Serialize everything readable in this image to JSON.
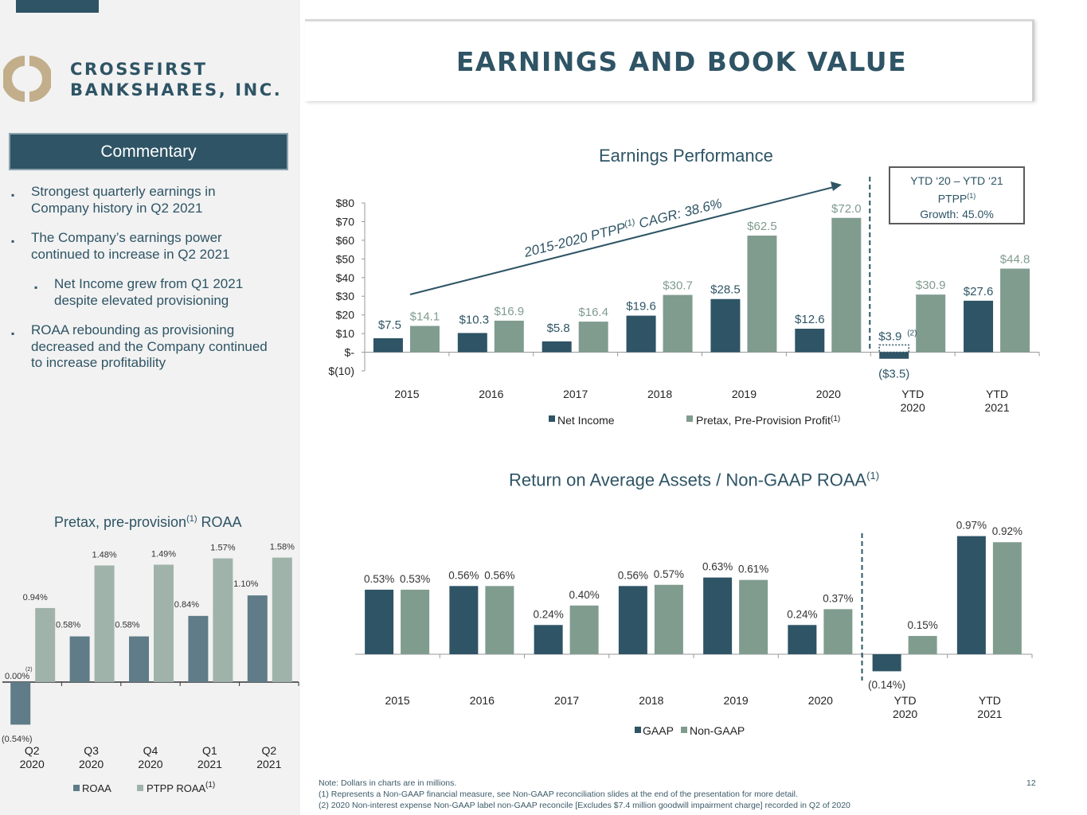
{
  "company": {
    "line1": "CROSSFIRST",
    "line2": "BANKSHARES, INC."
  },
  "title": "EARNINGS AND BOOK VALUE",
  "commentary": {
    "header": "Commentary",
    "bullets": [
      {
        "text_l1": "Strongest quarterly earnings in",
        "text_l2": "Company history in Q2 2021"
      },
      {
        "text_l1": "The Company’s earnings power",
        "text_l2": "continued to increase in Q2 2021"
      },
      {
        "text_l1": "Net Income grew from Q1 2021",
        "text_l2": "despite elevated provisioning"
      },
      {
        "text_l1": "ROAA rebounding as provisioning",
        "text_l2": "decreased and the Company continued",
        "text_l3": "to increase profitability"
      }
    ]
  },
  "colors": {
    "dark": "#2e5465",
    "green": "#809c8f",
    "slate": "#5f7c88",
    "light_green": "#a0b3aa",
    "white": "#ffffff"
  },
  "chart_data": [
    {
      "type": "bar",
      "title": "Earnings Performance",
      "categories": [
        "2015",
        "2016",
        "2017",
        "2018",
        "2019",
        "2020",
        "YTD 2020",
        "YTD 2021"
      ],
      "y_ticks": [
        "$80",
        "$70",
        "$60",
        "$50",
        "$40",
        "$30",
        "$20",
        "$10",
        "$-",
        "$(10)"
      ],
      "ylim": [
        -10,
        80
      ],
      "series": [
        {
          "name": "Net Income",
          "values": [
            7.5,
            10.3,
            5.8,
            19.6,
            28.5,
            12.6,
            -3.5,
            27.6
          ],
          "labels": [
            "$7.5",
            "$10.3",
            "$5.8",
            "$19.6",
            "$28.5",
            "$12.6",
            "($3.5)",
            "$27.6"
          ]
        },
        {
          "name": "Pretax, Pre-Provision Profit",
          "values": [
            14.1,
            16.9,
            16.4,
            30.7,
            62.5,
            72.0,
            30.9,
            44.8
          ],
          "labels": [
            "$14.1",
            "$16.9",
            "$16.4",
            "$30.7",
            "$62.5",
            "$72.0",
            "$30.9",
            "$44.8"
          ]
        }
      ],
      "legend": [
        "Net Income",
        "Pretax, Pre-Provision Profit"
      ],
      "legend_sup": "(1)",
      "annotations": {
        "cagr": "2015-2020 PTPP",
        "cagr_sup": "(1)",
        "cagr_tail": " CAGR: 38.6%",
        "adjusted_label": "$3.9",
        "adjusted_sup": "(2)",
        "growth_box_l1": "YTD ‘20 – YTD ‘21",
        "growth_box_l2": "PTPP",
        "growth_box_sup": "(1)",
        "growth_box_l3": "Growth: 45.0%"
      }
    },
    {
      "type": "bar",
      "title": "Return on Average Assets / Non-GAAP ROAA",
      "title_sup": "(1)",
      "categories": [
        "2015",
        "2016",
        "2017",
        "2018",
        "2019",
        "2020",
        "YTD 2020",
        "YTD 2021"
      ],
      "series": [
        {
          "name": "GAAP",
          "values": [
            0.53,
            0.56,
            0.24,
            0.56,
            0.63,
            0.24,
            -0.14,
            0.97
          ],
          "labels": [
            "0.53%",
            "0.56%",
            "0.24%",
            "0.56%",
            "0.63%",
            "0.24%",
            "(0.14%)",
            "0.97%"
          ]
        },
        {
          "name": "Non-GAAP",
          "values": [
            0.53,
            0.56,
            0.4,
            0.57,
            0.61,
            0.37,
            0.15,
            0.92
          ],
          "labels": [
            "0.53%",
            "0.56%",
            "0.40%",
            "0.57%",
            "0.61%",
            "0.37%",
            "0.15%",
            "0.92%"
          ]
        }
      ],
      "legend": [
        "GAAP",
        "Non-GAAP"
      ]
    },
    {
      "type": "bar",
      "title": "Pretax, pre-provision",
      "title_sup": "(1)",
      "title_tail": " ROAA",
      "categories": [
        "Q2 2020",
        "Q3 2020",
        "Q4 2020",
        "Q1 2021",
        "Q2 2021"
      ],
      "series": [
        {
          "name": "ROAA",
          "values": [
            -0.54,
            0.58,
            0.58,
            0.84,
            1.1
          ],
          "labels": [
            "(0.54%)",
            "0.58%",
            "0.58%",
            "0.84%",
            "1.10%"
          ]
        },
        {
          "name": "PTPP ROAA",
          "values": [
            0.94,
            1.48,
            1.49,
            1.57,
            1.58
          ],
          "labels": [
            "0.94%",
            "1.48%",
            "1.49%",
            "1.57%",
            "1.58%"
          ]
        }
      ],
      "legend": [
        "ROAA",
        "PTPP ROAA"
      ],
      "legend_sup": "(1)",
      "annotations": {
        "adjusted_label": "0.00%",
        "adjusted_sup": "(2)"
      }
    }
  ],
  "notes": {
    "line1": "Note: Dollars in charts are in millions.",
    "line2": "(1)   Represents a Non-GAAP financial measure, see Non-GAAP reconciliation slides at the end of the presentation for more detail.",
    "line3": "(2)   2020 Non-interest expense Non-GAAP label non-GAAP reconcile [Excludes $7.4 million goodwill impairment charge] recorded in Q2 of 2020"
  },
  "page_number": "12"
}
